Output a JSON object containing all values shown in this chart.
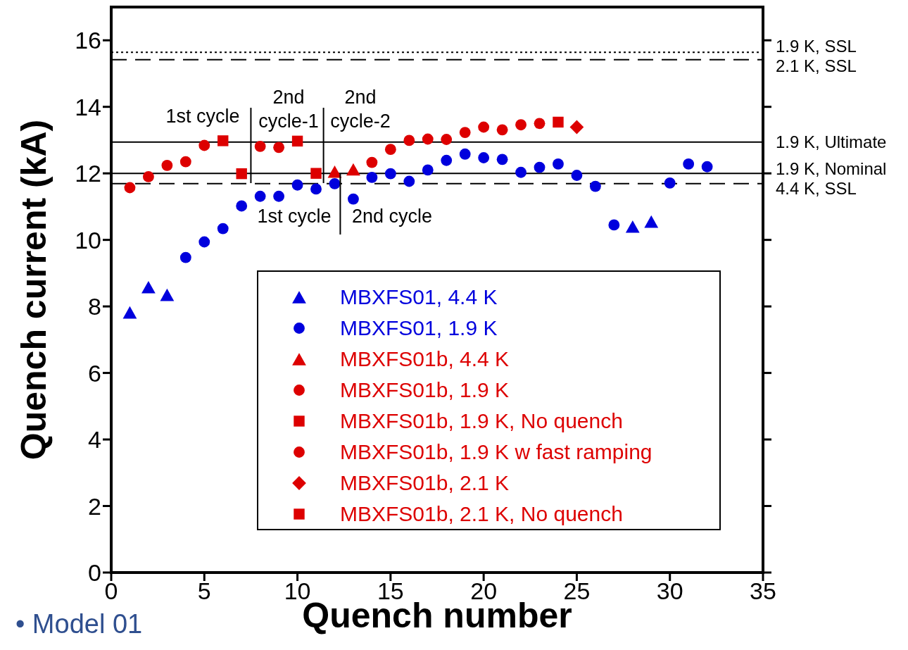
{
  "chart_data": {
    "type": "scatter",
    "xlabel": "Quench number",
    "ylabel": "Quench current (kA)",
    "xlim": [
      0,
      35
    ],
    "xticks": [
      0,
      5,
      10,
      15,
      20,
      25,
      30,
      35
    ],
    "ylim": [
      0,
      17
    ],
    "yticks": [
      0,
      2,
      4,
      6,
      8,
      10,
      12,
      14,
      16
    ],
    "legend": "bottom right",
    "series": [
      {
        "name": "MBXFS01, 4.4 K",
        "color": "#0000dd",
        "marker": "triangle",
        "x": [
          1,
          2,
          3,
          28,
          29
        ],
        "values": [
          7.82,
          8.58,
          8.35,
          10.4,
          10.55
        ]
      },
      {
        "name": "MBXFS01, 1.9 K",
        "color": "#0000dd",
        "marker": "circle",
        "x": [
          4,
          5,
          6,
          7,
          8,
          9,
          10,
          11,
          12,
          13,
          14,
          15,
          16,
          17,
          18,
          19,
          20,
          21,
          22,
          23,
          24,
          25,
          26,
          27,
          30,
          31,
          32
        ],
        "values": [
          9.47,
          9.94,
          10.34,
          11.02,
          11.31,
          11.31,
          11.65,
          11.53,
          11.69,
          11.23,
          11.88,
          11.99,
          11.76,
          12.1,
          12.39,
          12.58,
          12.47,
          12.42,
          12.03,
          12.18,
          12.28,
          11.94,
          11.61,
          10.45,
          11.71,
          12.28,
          12.2
        ]
      },
      {
        "name": "MBXFS01b, 4.4 K",
        "color": "#dd0000",
        "marker": "triangle",
        "x": [
          12,
          13
        ],
        "values": [
          12.05,
          12.12
        ]
      },
      {
        "name": "MBXFS01b, 1.9 K",
        "color": "#dd0000",
        "marker": "circle",
        "x": [
          1,
          2,
          3,
          4,
          5,
          8,
          9,
          14,
          15,
          16,
          17,
          18,
          23
        ],
        "values": [
          11.57,
          11.9,
          12.24,
          12.35,
          12.84,
          12.81,
          12.78,
          12.33,
          12.72,
          12.99,
          13.03,
          13.02,
          13.5
        ]
      },
      {
        "name": "MBXFS01b, 1.9 K, No quench",
        "color": "#dd0000",
        "marker": "square",
        "x": [
          6,
          7,
          10,
          11
        ],
        "values": [
          12.98,
          11.99,
          12.97,
          12.0
        ]
      },
      {
        "name": "MBXFS01b, 1.9 K w fast ramping",
        "color": "#dd0000",
        "marker": "circle",
        "x": [
          19,
          20,
          21,
          22
        ],
        "values": [
          13.23,
          13.39,
          13.31,
          13.46
        ]
      },
      {
        "name": "MBXFS01b, 2.1 K",
        "color": "#dd0000",
        "marker": "diamond",
        "x": [
          25
        ],
        "values": [
          13.39
        ]
      },
      {
        "name": "MBXFS01b, 2.1 K, No quench",
        "color": "#dd0000",
        "marker": "square",
        "x": [
          24
        ],
        "values": [
          13.54
        ]
      }
    ],
    "ref_lines": [
      {
        "axis": "y",
        "value": 15.64,
        "label": "1.9 K, SSL",
        "line_style": "dotted",
        "color": "#000000"
      },
      {
        "axis": "y",
        "value": 15.42,
        "label": "2.1 K, SSL",
        "line_style": "dashed",
        "color": "#000000"
      },
      {
        "axis": "y",
        "value": 12.94,
        "label": "1.9 K, Ultimate",
        "line_style": "solid",
        "color": "#000000"
      },
      {
        "axis": "y",
        "value": 12.0,
        "label": "1.9 K, Nominal",
        "line_style": "solid",
        "color": "#000000"
      },
      {
        "axis": "y",
        "value": 11.69,
        "label": "4.4 K, SSL",
        "line_style": "dashed",
        "color": "#000000"
      },
      {
        "axis": "x",
        "value": 7.5,
        "color": "#000000"
      },
      {
        "axis": "x",
        "value": 11.4,
        "color": "#000000"
      },
      {
        "axis": "x",
        "value": 12.3,
        "color": "#000000"
      }
    ],
    "annotations": [
      "1st cycle",
      "2nd\ncycle-1",
      "2nd\ncycle-2",
      "1st cycle",
      "2nd cycle",
      "• Model 01"
    ]
  }
}
